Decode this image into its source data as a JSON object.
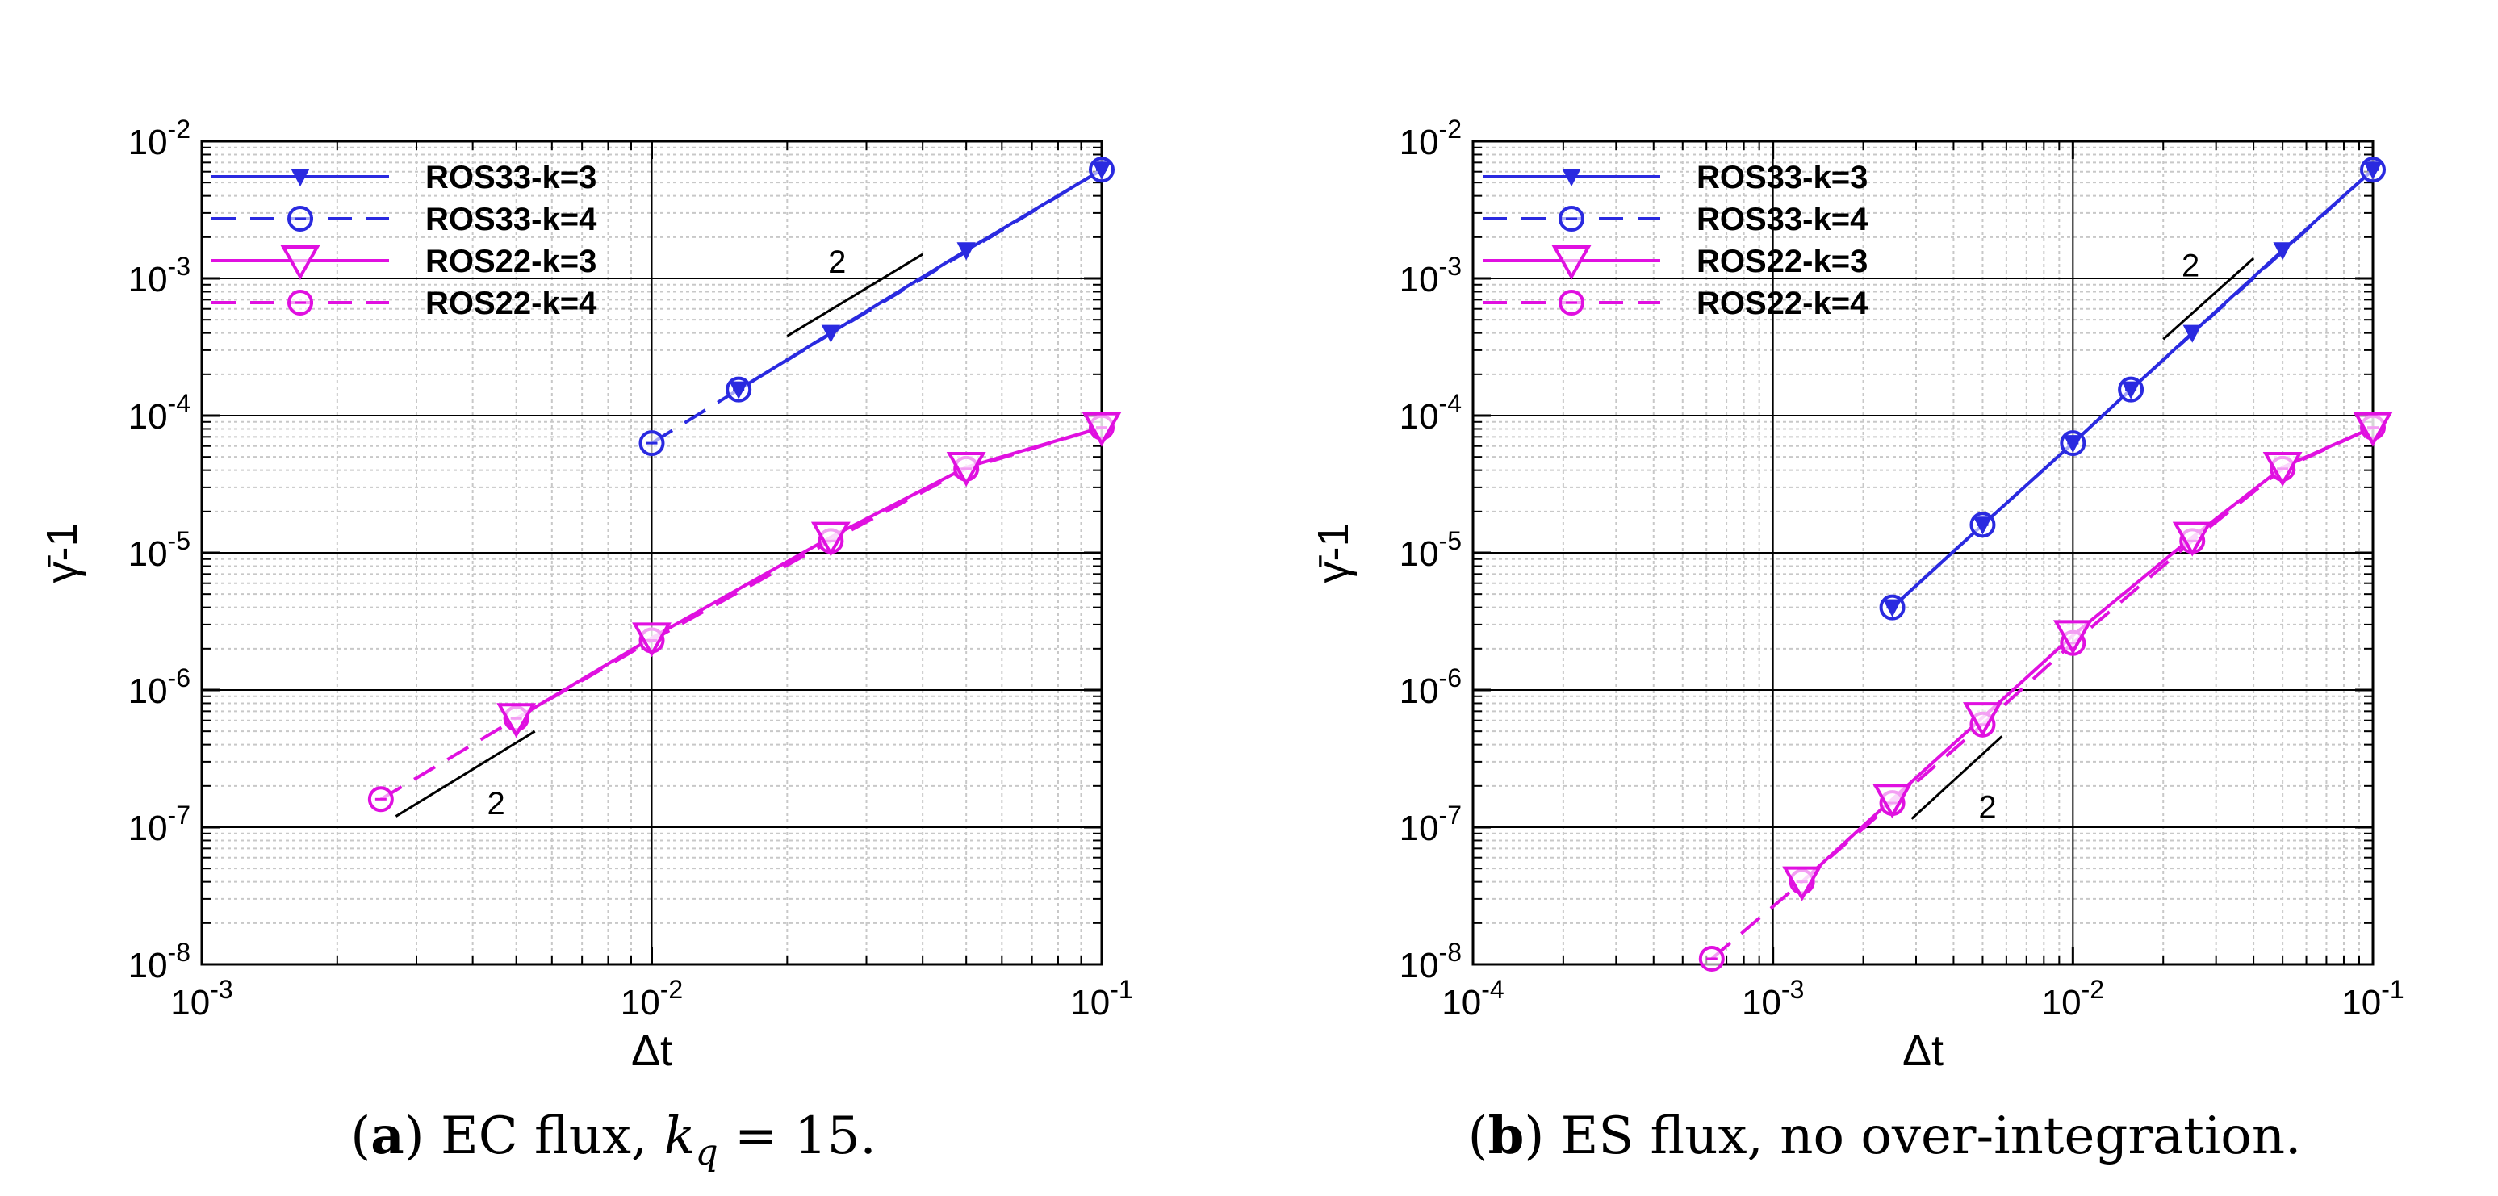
{
  "colors": {
    "blue": "#2a2ae0",
    "magenta": "#e010e0",
    "grid_major": "#000000",
    "grid_minor": "#c8c8c8",
    "reference": "#000000"
  },
  "legend": [
    {
      "label": "ROS33-k=3",
      "color": "#2a2ae0",
      "dash": "solid",
      "marker": "triangle-down-small"
    },
    {
      "label": "ROS33-k=4",
      "color": "#2a2ae0",
      "dash": "dashed",
      "marker": "circle-dash"
    },
    {
      "label": "ROS22-k=3",
      "color": "#e010e0",
      "dash": "solid",
      "marker": "triangle-down-large"
    },
    {
      "label": "ROS22-k=4",
      "color": "#e010e0",
      "dash": "dashed",
      "marker": "circle-dash"
    }
  ],
  "chart_data": [
    {
      "type": "line",
      "scale": "log-log",
      "xlabel": "Δt",
      "ylabel": "γ̄-1",
      "xlim": [
        0.001,
        0.1
      ],
      "ylim": [
        1e-08,
        0.01
      ],
      "x_ticks": [
        {
          "base": "10",
          "exp": "-3"
        },
        {
          "base": "10",
          "exp": "-2"
        },
        {
          "base": "10",
          "exp": "-1"
        }
      ],
      "y_ticks": [
        {
          "base": "10",
          "exp": "-8"
        },
        {
          "base": "10",
          "exp": "-7"
        },
        {
          "base": "10",
          "exp": "-6"
        },
        {
          "base": "10",
          "exp": "-5"
        },
        {
          "base": "10",
          "exp": "-4"
        },
        {
          "base": "10",
          "exp": "-3"
        },
        {
          "base": "10",
          "exp": "-2"
        }
      ],
      "series": [
        {
          "name": "ROS33-k=3",
          "x": [
            0.0156,
            0.025,
            0.05,
            0.1
          ],
          "y": [
            0.000155,
            0.0004,
            0.0016,
            0.0062
          ]
        },
        {
          "name": "ROS33-k=4",
          "x": [
            0.01,
            0.0156,
            0.1
          ],
          "y": [
            6.3e-05,
            0.000155,
            0.0062
          ]
        },
        {
          "name": "ROS22-k=3",
          "x": [
            0.005,
            0.01,
            0.025,
            0.05,
            0.1
          ],
          "y": [
            6.2e-07,
            2.4e-06,
            1.3e-05,
            4.2e-05,
            8.2e-05
          ]
        },
        {
          "name": "ROS22-k=4",
          "x": [
            0.0025,
            0.005,
            0.01,
            0.025,
            0.05,
            0.1
          ],
          "y": [
            1.6e-07,
            6.2e-07,
            2.3e-06,
            1.22e-05,
            4.1e-05,
            8.2e-05
          ]
        }
      ],
      "slope_annotations": [
        {
          "label": "2",
          "x1": 0.02,
          "y1": 0.00038,
          "x2": 0.04,
          "y2": 0.0015
        },
        {
          "label": "2",
          "x1": 0.0027,
          "y1": 1.2e-07,
          "x2": 0.0055,
          "y2": 5e-07
        }
      ],
      "caption": {
        "letter": "a",
        "text": " EC flux, ",
        "var": "k",
        "sub": "q",
        "rest": " = 15."
      }
    },
    {
      "type": "line",
      "scale": "log-log",
      "xlabel": "Δt",
      "ylabel": "γ̄-1",
      "xlim": [
        0.0001,
        0.1
      ],
      "ylim": [
        1e-08,
        0.01
      ],
      "x_ticks": [
        {
          "base": "10",
          "exp": "-4"
        },
        {
          "base": "10",
          "exp": "-3"
        },
        {
          "base": "10",
          "exp": "-2"
        },
        {
          "base": "10",
          "exp": "-1"
        }
      ],
      "y_ticks": [
        {
          "base": "10",
          "exp": "-8"
        },
        {
          "base": "10",
          "exp": "-7"
        },
        {
          "base": "10",
          "exp": "-6"
        },
        {
          "base": "10",
          "exp": "-5"
        },
        {
          "base": "10",
          "exp": "-4"
        },
        {
          "base": "10",
          "exp": "-3"
        },
        {
          "base": "10",
          "exp": "-2"
        }
      ],
      "series": [
        {
          "name": "ROS33-k=3",
          "x": [
            0.0025,
            0.005,
            0.01,
            0.0156,
            0.025,
            0.05,
            0.1
          ],
          "y": [
            4e-06,
            1.6e-05,
            6.3e-05,
            0.000155,
            0.0004,
            0.0016,
            0.0062
          ]
        },
        {
          "name": "ROS33-k=4",
          "x": [
            0.0025,
            0.005,
            0.01,
            0.0156,
            0.1
          ],
          "y": [
            4e-06,
            1.6e-05,
            6.3e-05,
            0.000155,
            0.0062
          ]
        },
        {
          "name": "ROS22-k=3",
          "x": [
            0.00125,
            0.0025,
            0.005,
            0.01,
            0.025,
            0.05,
            0.1
          ],
          "y": [
            4e-08,
            1.6e-07,
            6.3e-07,
            2.5e-06,
            1.3e-05,
            4.2e-05,
            8.2e-05
          ]
        },
        {
          "name": "ROS22-k=4",
          "x": [
            0.000625,
            0.00125,
            0.0025,
            0.005,
            0.01,
            0.025,
            0.05,
            0.1
          ],
          "y": [
            1.1e-08,
            4e-08,
            1.5e-07,
            5.6e-07,
            2.2e-06,
            1.22e-05,
            4.1e-05,
            8.2e-05
          ]
        }
      ],
      "slope_annotations": [
        {
          "label": "2",
          "x1": 0.02,
          "y1": 0.00036,
          "x2": 0.04,
          "y2": 0.0014
        },
        {
          "label": "2",
          "x1": 0.0029,
          "y1": 1.15e-07,
          "x2": 0.0058,
          "y2": 4.6e-07
        }
      ],
      "caption": {
        "letter": "b",
        "text": " ES flux, no over-integration."
      }
    }
  ]
}
